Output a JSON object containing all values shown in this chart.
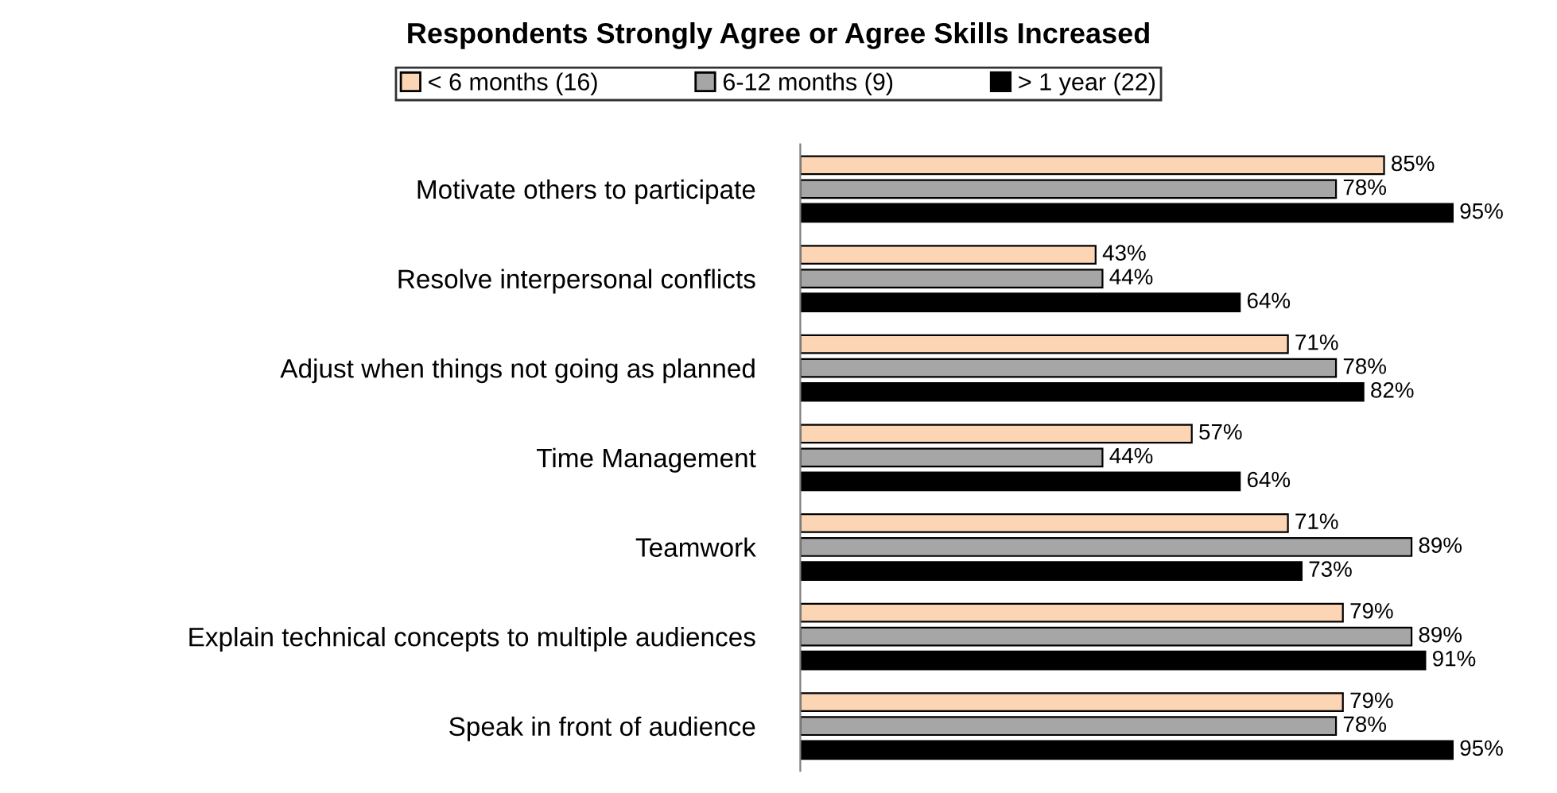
{
  "chart_data": {
    "type": "bar",
    "orientation": "horizontal",
    "title": "Respondents Strongly Agree or Agree Skills Increased",
    "categories": [
      "Motivate others to participate",
      "Resolve interpersonal conflicts",
      "Adjust when things not going as planned",
      "Time Management",
      "Teamwork",
      "Explain technical concepts to multiple audiences",
      "Speak in front of audience"
    ],
    "series": [
      {
        "name": "< 6 months (16)",
        "color": "#fcd5b5",
        "values": [
          85,
          43,
          71,
          57,
          71,
          79,
          79
        ],
        "value_labels": [
          "85%",
          "43%",
          "71%",
          "57%",
          "71%",
          "79%",
          "79%"
        ]
      },
      {
        "name": "6-12 months (9)",
        "color": "#a6a6a6",
        "values": [
          78,
          44,
          78,
          44,
          89,
          89,
          78
        ],
        "value_labels": [
          "78%",
          "44%",
          "78%",
          "44%",
          "89%",
          "89%",
          "78%"
        ]
      },
      {
        "name": "> 1 year (22)",
        "color": "#000000",
        "values": [
          95,
          64,
          82,
          64,
          73,
          91,
          95
        ],
        "value_labels": [
          "95%",
          "64%",
          "82%",
          "64%",
          "73%",
          "91%",
          "95%"
        ]
      }
    ],
    "legend": "top",
    "grid": false,
    "tick_labels": "y"
  }
}
